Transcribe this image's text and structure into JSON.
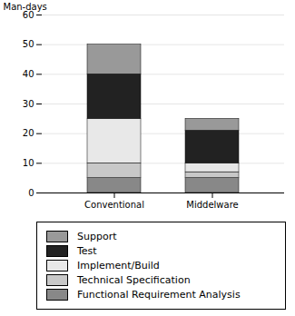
{
  "chart_data": {
    "type": "bar",
    "stacked": true,
    "categories": [
      "Conventional",
      "Middelware"
    ],
    "series": [
      {
        "name": "Functional Requirement Analysis",
        "color": "#888888",
        "values": [
          5,
          5
        ]
      },
      {
        "name": "Technical Specification",
        "color": "#c8c8c8",
        "values": [
          5,
          2
        ]
      },
      {
        "name": "Implement/Build",
        "color": "#e8e8e8",
        "values": [
          15,
          3
        ]
      },
      {
        "name": "Test",
        "color": "#222222",
        "values": [
          15,
          11
        ]
      },
      {
        "name": "Support",
        "color": "#999999",
        "values": [
          10,
          4
        ]
      }
    ],
    "ylabel": "Man-days",
    "ylim": [
      0,
      60
    ],
    "yticks": [
      0,
      10,
      20,
      30,
      40,
      50,
      60
    ],
    "grid": true,
    "legend": "bottom"
  }
}
